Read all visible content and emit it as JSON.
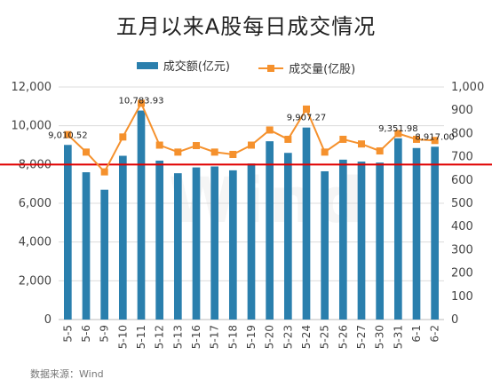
{
  "chart_data": {
    "type": "bar+line",
    "title": "五月以来A股每日成交情况",
    "categories": [
      "5-5",
      "5-6",
      "5-9",
      "5-10",
      "5-11",
      "5-12",
      "5-13",
      "5-16",
      "5-17",
      "5-18",
      "5-19",
      "5-20",
      "5-23",
      "5-24",
      "5-25",
      "5-26",
      "5-27",
      "5-30",
      "5-31",
      "6-1",
      "6-2"
    ],
    "series": [
      {
        "name": "成交额(亿元)",
        "type": "bar",
        "axis": "left",
        "color": "#2a7fad",
        "values": [
          9010.52,
          7600,
          6700,
          8450,
          10783.93,
          8200,
          7550,
          7850,
          7900,
          7700,
          8050,
          9200,
          8600,
          9907.27,
          7650,
          8250,
          8150,
          8100,
          9351.98,
          8850,
          8917.0
        ]
      },
      {
        "name": "成交量(亿股)",
        "type": "line",
        "axis": "right",
        "color": "#f5912d",
        "values": [
          795,
          720,
          635,
          785,
          930,
          750,
          720,
          748,
          720,
          710,
          750,
          815,
          775,
          905,
          720,
          775,
          755,
          725,
          800,
          775,
          770
        ]
      }
    ],
    "data_labels": [
      {
        "index": 0,
        "text": "9,010.52"
      },
      {
        "index": 4,
        "text": "10,783.93"
      },
      {
        "index": 13,
        "text": "9,907.27"
      },
      {
        "index": 18,
        "text": "9,351.98"
      },
      {
        "index": 20,
        "text": "8,917.00"
      }
    ],
    "ylim_left": [
      0,
      12000
    ],
    "ylim_right": [
      0,
      1000
    ],
    "yticks_left": [
      "0",
      "2,000",
      "4,000",
      "6,000",
      "8,000",
      "10,000",
      "12,000"
    ],
    "yticks_right": [
      "0",
      "100",
      "200",
      "300",
      "400",
      "500",
      "600",
      "700",
      "800",
      "900",
      "1,000"
    ],
    "reference_line": {
      "axis": "left",
      "value": 8000,
      "color": "#e00000"
    },
    "grid": true,
    "legend_position": "top-center"
  },
  "source_text": "数据来源：Wind",
  "watermark_text": "Wind"
}
